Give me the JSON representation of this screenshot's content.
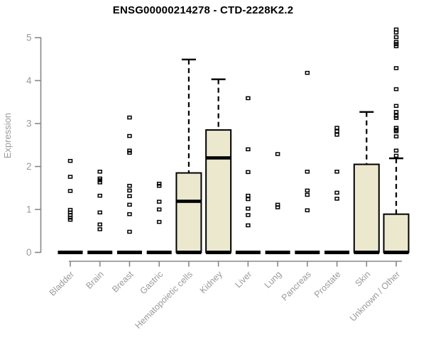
{
  "page": {
    "background": "#ffffff"
  },
  "chart_data": {
    "type": "boxplot",
    "title": "ENSG00000214278 - CTD-2228K2.2",
    "xlabel": "",
    "ylabel": "Expression",
    "ylim": [
      0,
      5.2
    ],
    "yticks": [
      "0",
      "1",
      "2",
      "3",
      "4",
      "5"
    ],
    "grid": false,
    "legend": "none",
    "colors": {
      "box_fill": "#ece8cd",
      "box_stroke": "#000000",
      "median": "#000000",
      "whisker": "#000000",
      "outlier": "#000000",
      "axis": "#878787",
      "tick_label": "#9a9a9a",
      "title": "#000000"
    },
    "categories": [
      {
        "label": "Bladder",
        "q1": 0,
        "median": 0,
        "q3": 0,
        "whisker_low": 0,
        "whisker_high": 0,
        "outliers": [
          2.13,
          1.76,
          1.43,
          0.99,
          0.93,
          0.87,
          0.81,
          0.76
        ]
      },
      {
        "label": "Brain",
        "q1": 0,
        "median": 0,
        "q3": 0,
        "whisker_low": 0,
        "whisker_high": 0,
        "outliers": [
          1.88,
          1.72,
          1.68,
          1.63,
          1.32,
          0.93,
          0.65,
          0.54
        ]
      },
      {
        "label": "Breast",
        "q1": 0,
        "median": 0,
        "q3": 0,
        "whisker_low": 0,
        "whisker_high": 0,
        "outliers": [
          3.14,
          2.71,
          2.37,
          2.32,
          1.55,
          1.44,
          1.31,
          1.11,
          0.89,
          0.48
        ]
      },
      {
        "label": "Gastric",
        "q1": 0,
        "median": 0,
        "q3": 0,
        "whisker_low": 0,
        "whisker_high": 0,
        "outliers": [
          1.6,
          1.55,
          1.18,
          1.0,
          0.71
        ]
      },
      {
        "label": "Hematopoietic cells",
        "q1": 0,
        "median": 1.19,
        "q3": 1.85,
        "whisker_low": 0,
        "whisker_high": 4.49,
        "outliers": []
      },
      {
        "label": "Kidney",
        "q1": 0,
        "median": 2.2,
        "q3": 2.85,
        "whisker_low": 0,
        "whisker_high": 4.03,
        "outliers": []
      },
      {
        "label": "Liver",
        "q1": 0,
        "median": 0,
        "q3": 0,
        "whisker_low": 0,
        "whisker_high": 0,
        "outliers": [
          3.59,
          2.4,
          1.87,
          1.32,
          1.24,
          1.02,
          0.87,
          0.63
        ]
      },
      {
        "label": "Lung",
        "q1": 0,
        "median": 0,
        "q3": 0,
        "whisker_low": 0,
        "whisker_high": 0,
        "outliers": [
          2.29,
          1.11,
          1.05
        ]
      },
      {
        "label": "Pancreas",
        "q1": 0,
        "median": 0,
        "q3": 0,
        "whisker_low": 0,
        "whisker_high": 0,
        "outliers": [
          4.18,
          1.88,
          1.44,
          1.34,
          0.98
        ]
      },
      {
        "label": "Prostate",
        "q1": 0,
        "median": 0,
        "q3": 0,
        "whisker_low": 0,
        "whisker_high": 0,
        "outliers": [
          2.9,
          2.82,
          2.74,
          1.88,
          1.39,
          1.25
        ]
      },
      {
        "label": "Skin",
        "q1": 0,
        "median": 0,
        "q3": 2.05,
        "whisker_low": 0,
        "whisker_high": 3.27,
        "outliers": []
      },
      {
        "label": "Unknown / Other",
        "q1": 0,
        "median": 0,
        "q3": 0.89,
        "whisker_low": 0,
        "whisker_high": 2.19,
        "outliers": [
          5.19,
          5.12,
          5.01,
          4.9,
          4.85,
          4.8,
          4.29,
          3.8,
          3.41,
          3.27,
          3.18,
          3.13,
          2.9,
          2.85,
          2.82,
          2.7,
          2.37,
          2.25
        ]
      }
    ]
  }
}
